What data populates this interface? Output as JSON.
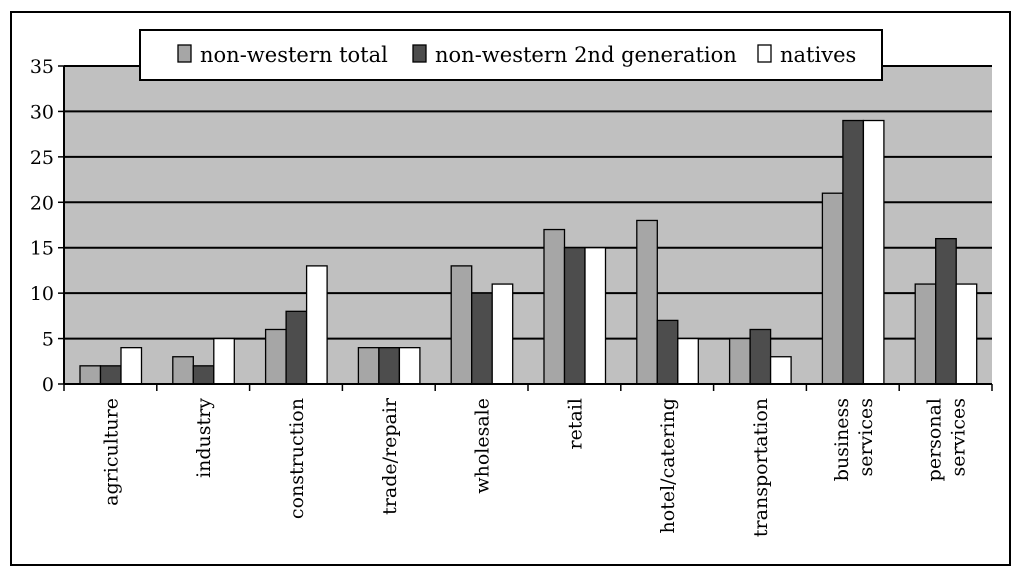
{
  "chart_data": {
    "type": "bar",
    "title": "",
    "xlabel": "",
    "ylabel": "",
    "ylim": [
      0,
      35
    ],
    "yticks": [
      "0",
      "5",
      "10",
      "15",
      "20",
      "25",
      "30",
      "35"
    ],
    "grid": true,
    "legend_position": "top-center",
    "categories": [
      [
        "agriculture"
      ],
      [
        "industry"
      ],
      [
        "construction"
      ],
      [
        "trade/repair"
      ],
      [
        "wholesale"
      ],
      [
        "retail"
      ],
      [
        "hotel/catering"
      ],
      [
        "transportation"
      ],
      [
        "business",
        "services"
      ],
      [
        "personal",
        "services"
      ]
    ],
    "series": [
      {
        "name": "non-western total",
        "color": "#a6a6a6",
        "values": [
          2,
          3,
          6,
          4,
          13,
          17,
          18,
          5,
          21,
          11
        ]
      },
      {
        "name": "non-western 2nd generation",
        "color": "#4d4d4d",
        "values": [
          2,
          2,
          8,
          4,
          10,
          15,
          7,
          6,
          29,
          16
        ]
      },
      {
        "name": "natives",
        "color": "#ffffff",
        "values": [
          4,
          5,
          13,
          4,
          11,
          15,
          5,
          3,
          29,
          11
        ]
      }
    ],
    "plot_background": "#c0c0c0"
  }
}
